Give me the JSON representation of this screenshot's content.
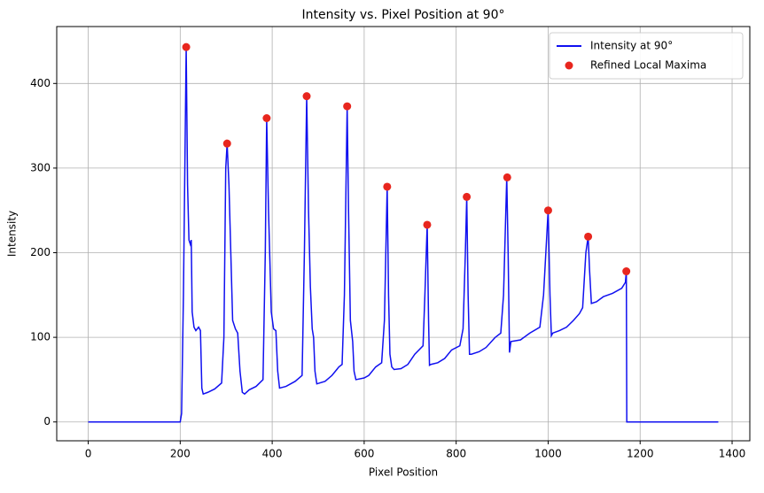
{
  "chart_data": {
    "type": "line",
    "title": "Intensity vs. Pixel Position at 90°",
    "x_label": "Pixel Position",
    "y_label": "Intensity",
    "xlim": [
      -68.5,
      1438.5
    ],
    "xticks": [
      0,
      200,
      400,
      600,
      800,
      1000,
      1200,
      1400
    ],
    "ylim": [
      -22.25,
      467.25
    ],
    "yticks": [
      0,
      100,
      200,
      300,
      400
    ],
    "grid": true,
    "legend": "upper right",
    "series": [
      {
        "name": "Intensity at 90°",
        "type": "line",
        "color": "#1010f0",
        "x": [
          0,
          200,
          203,
          207,
          213,
          216,
          219,
          222,
          224,
          226,
          230,
          234,
          240,
          244,
          247,
          250,
          260,
          275,
          290,
          295,
          299,
          302,
          306,
          310,
          314,
          320,
          325,
          330,
          335,
          340,
          350,
          365,
          380,
          385,
          388,
          392,
          398,
          403,
          408,
          412,
          416,
          430,
          450,
          465,
          470,
          475,
          479,
          483,
          487,
          490,
          493,
          497,
          515,
          530,
          545,
          552,
          557,
          563,
          566,
          570,
          575,
          578,
          582,
          600,
          610,
          625,
          638,
          644,
          650,
          653,
          656,
          660,
          665,
          680,
          695,
          710,
          728,
          732,
          737,
          740,
          742,
          745,
          760,
          775,
          790,
          808,
          815,
          820,
          823,
          826,
          829,
          833,
          850,
          865,
          885,
          897,
          903,
          910,
          913,
          916,
          919,
          940,
          960,
          982,
          990,
          1000,
          1004,
          1007,
          1010,
          1025,
          1040,
          1055,
          1068,
          1075,
          1082,
          1087,
          1090,
          1094,
          1105,
          1120,
          1140,
          1160,
          1168,
          1170,
          1171,
          1200,
          1370
        ],
        "values": [
          0,
          0,
          10,
          150,
          443,
          280,
          215,
          210,
          215,
          130,
          112,
          108,
          112,
          108,
          40,
          33,
          35,
          39,
          46,
          100,
          300,
          329,
          280,
          200,
          120,
          110,
          105,
          60,
          35,
          33,
          38,
          42,
          50,
          200,
          359,
          250,
          130,
          110,
          108,
          60,
          40,
          42,
          48,
          55,
          200,
          385,
          250,
          160,
          110,
          100,
          60,
          45,
          48,
          55,
          65,
          68,
          150,
          373,
          250,
          120,
          95,
          60,
          50,
          52,
          55,
          65,
          70,
          120,
          278,
          150,
          80,
          65,
          62,
          63,
          68,
          80,
          90,
          150,
          233,
          120,
          67,
          68,
          70,
          75,
          85,
          90,
          110,
          200,
          266,
          150,
          80,
          80,
          83,
          88,
          100,
          105,
          150,
          289,
          200,
          82,
          95,
          97,
          105,
          112,
          150,
          250,
          150,
          102,
          105,
          108,
          112,
          120,
          128,
          135,
          200,
          219,
          180,
          140,
          142,
          148,
          152,
          158,
          165,
          178,
          0,
          0,
          0
        ]
      },
      {
        "name": "Refined Local Maxima",
        "type": "scatter",
        "color": "#e8261e",
        "x": [
          213,
          302,
          388,
          475,
          563,
          650,
          737,
          823,
          911,
          1000,
          1087,
          1170
        ],
        "values": [
          443,
          329,
          359,
          385,
          373,
          278,
          233,
          266,
          289,
          250,
          219,
          178
        ]
      }
    ]
  }
}
